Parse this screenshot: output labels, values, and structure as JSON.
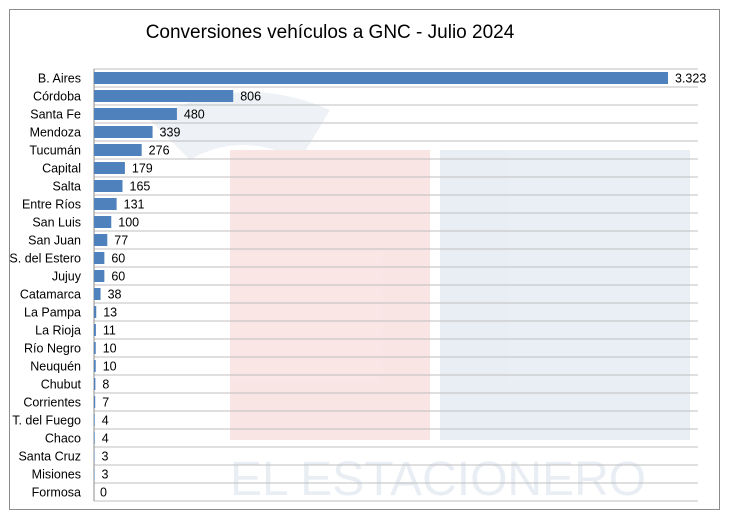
{
  "chart_data": {
    "type": "bar",
    "orientation": "horizontal",
    "title": "Conversiones vehículos a GNC - Julio 2024",
    "categories": [
      "B. Aires",
      "Córdoba",
      "Santa Fe",
      "Mendoza",
      "Tucumán",
      "Capital",
      "Salta",
      "Entre Ríos",
      "San Luis",
      "San Juan",
      "S. del Estero",
      "Jujuy",
      "Catamarca",
      "La Pampa",
      "La Rioja",
      "Río Negro",
      "Neuquén",
      "Chubut",
      "Corrientes",
      "T. del Fuego",
      "Chaco",
      "Santa Cruz",
      "Misiones",
      "Formosa"
    ],
    "values": [
      3323,
      806,
      480,
      339,
      276,
      179,
      165,
      131,
      100,
      77,
      60,
      60,
      38,
      13,
      11,
      10,
      10,
      8,
      7,
      4,
      4,
      3,
      3,
      0
    ],
    "data_labels": [
      "3.323",
      "806",
      "480",
      "339",
      "276",
      "179",
      "165",
      "131",
      "100",
      "77",
      "60",
      "60",
      "38",
      "13",
      "11",
      "10",
      "10",
      "8",
      "7",
      "4",
      "4",
      "3",
      "3",
      "0"
    ],
    "xlim": [
      0,
      3500
    ],
    "grid": true,
    "legend": "none",
    "bar_color": "#4f81bd",
    "watermark": "EL ESTACIONERO"
  }
}
